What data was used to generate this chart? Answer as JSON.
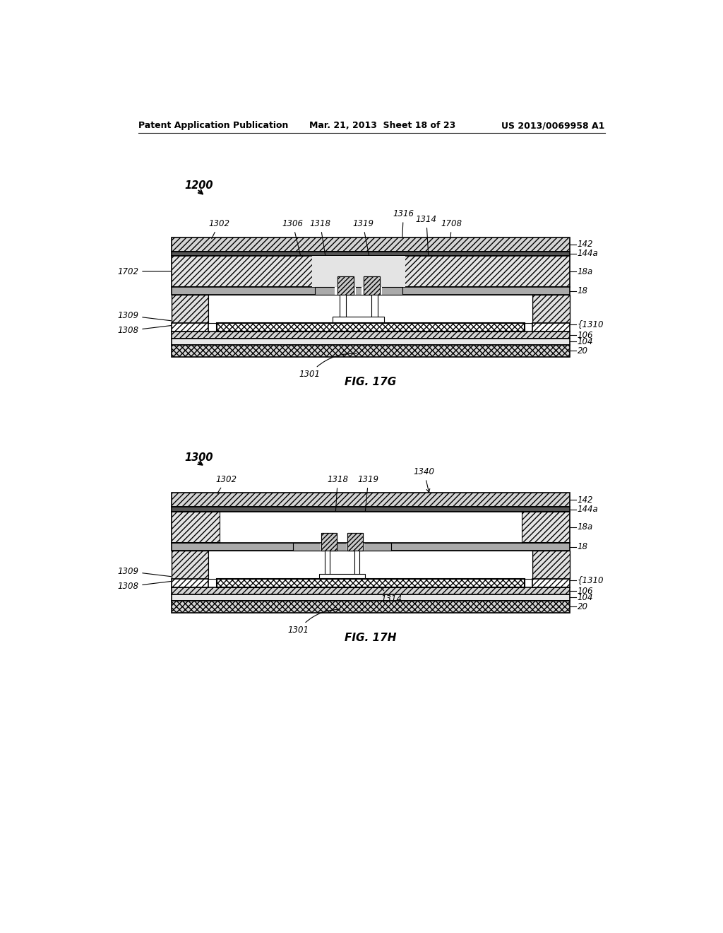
{
  "page_header_left": "Patent Application Publication",
  "page_header_mid": "Mar. 21, 2013  Sheet 18 of 23",
  "page_header_right": "US 2013/0069958 A1",
  "fig1_label": "1200",
  "fig1_caption": "FIG. 17G",
  "fig2_label": "1300",
  "fig2_caption": "FIG. 17H",
  "background_color": "#ffffff",
  "line_color": "#000000"
}
